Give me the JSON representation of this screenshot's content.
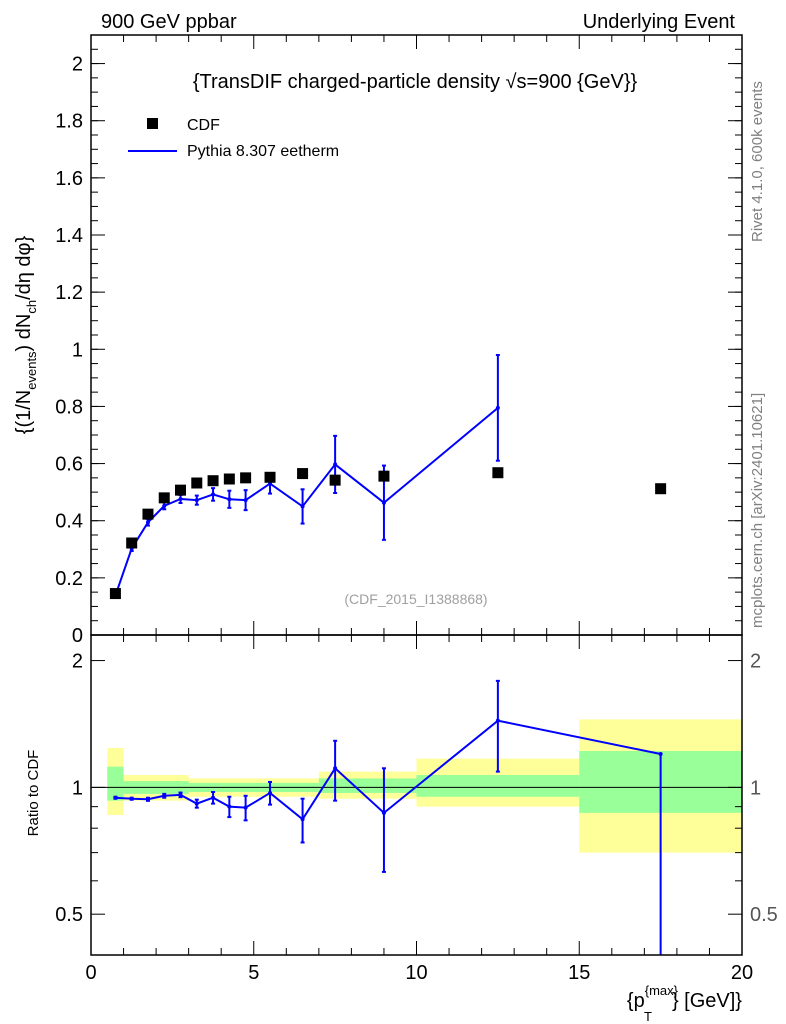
{
  "header": {
    "left": "900 GeV ppbar",
    "right": "Underlying Event"
  },
  "side_labels": {
    "rivet": "Rivet 4.1.0,  600k events",
    "source": "mcplots.cern.ch [arXiv:2401.10621]"
  },
  "chart_data": [
    {
      "type": "scatter",
      "panel": "main",
      "title": "{TransDIF charged-particle density",
      "title_sqrt": "√s=900 {GeV}}",
      "watermark": "(CDF_2015_I1388868)",
      "ylabel": {
        "a": "{(1/N",
        "b": "events",
        "c": ") dN",
        "d": "ch",
        "e": "/dη dφ}"
      },
      "xlim": [
        0,
        20
      ],
      "ylim": [
        0,
        2.1
      ],
      "yticks": [
        0,
        0.2,
        0.4,
        0.6,
        0.8,
        1,
        1.2,
        1.4,
        1.6,
        1.8,
        2
      ],
      "ytick_labels": [
        "0",
        "0.2",
        "0.4",
        "0.6",
        "0.8",
        "1",
        "1.2",
        "1.4",
        "1.6",
        "1.8",
        "2"
      ],
      "legend": [
        {
          "label": "CDF",
          "marker": "square",
          "color": "#000000"
        },
        {
          "label": "Pythia 8.307 eetherm",
          "marker": "line",
          "color": "#0000ff"
        }
      ],
      "series": [
        {
          "name": "CDF",
          "color": "#000000",
          "x": [
            0.75,
            1.25,
            1.75,
            2.25,
            2.75,
            3.25,
            3.75,
            4.25,
            4.75,
            5.5,
            6.5,
            7.5,
            9,
            12.5,
            17.5
          ],
          "y": [
            0.145,
            0.322,
            0.423,
            0.48,
            0.507,
            0.532,
            0.54,
            0.546,
            0.55,
            0.552,
            0.565,
            0.542,
            0.556,
            0.568,
            0.512
          ]
        },
        {
          "name": "Pythia 8.307 eetherm",
          "color": "#0000ff",
          "x": [
            0.75,
            1.25,
            1.75,
            2.25,
            2.75,
            3.25,
            3.75,
            4.25,
            4.75,
            5.5,
            6.5,
            7.5,
            9,
            12.5
          ],
          "y": [
            0.138,
            0.303,
            0.394,
            0.452,
            0.476,
            0.472,
            0.492,
            0.475,
            0.472,
            0.53,
            0.45,
            0.597,
            0.463,
            0.795
          ],
          "yerr": [
            0.004,
            0.009,
            0.011,
            0.012,
            0.014,
            0.016,
            0.022,
            0.03,
            0.035,
            0.035,
            0.06,
            0.1,
            0.13,
            0.185
          ]
        }
      ]
    },
    {
      "type": "line",
      "panel": "ratio",
      "ylabel": "Ratio to CDF",
      "xlabel": {
        "a": "{p",
        "sup": "{max}",
        "sub": "T",
        "b": "} [GeV]}"
      },
      "xlim": [
        0,
        20
      ],
      "ylim": [
        0.4,
        2.3
      ],
      "yscale": "log",
      "yticks": [
        0.5,
        1,
        2
      ],
      "ytick_labels": [
        "0.5",
        "1",
        "2"
      ],
      "xticks": [
        0,
        5,
        10,
        15,
        20
      ],
      "xtick_labels": [
        "0",
        "5",
        "10",
        "15",
        "20"
      ],
      "bands": [
        {
          "x0": 0.5,
          "x1": 1.0,
          "y_lo": 0.86,
          "y_hi": 1.24,
          "g_lo": 0.93,
          "g_hi": 1.12
        },
        {
          "x0": 1.0,
          "x1": 3.0,
          "y_lo": 0.93,
          "y_hi": 1.07,
          "g_lo": 0.965,
          "g_hi": 1.035
        },
        {
          "x0": 3.0,
          "x1": 7.0,
          "y_lo": 0.95,
          "y_hi": 1.05,
          "g_lo": 0.975,
          "g_hi": 1.025
        },
        {
          "x0": 7.0,
          "x1": 10.0,
          "y_lo": 0.94,
          "y_hi": 1.09,
          "g_lo": 0.97,
          "g_hi": 1.05
        },
        {
          "x0": 10.0,
          "x1": 15.0,
          "y_lo": 0.9,
          "y_hi": 1.17,
          "g_lo": 0.95,
          "g_hi": 1.07
        },
        {
          "x0": 15.0,
          "x1": 20.0,
          "y_lo": 0.7,
          "y_hi": 1.45,
          "g_lo": 0.87,
          "g_hi": 1.22
        }
      ],
      "series": [
        {
          "name": "Pythia 8.307 eetherm / CDF",
          "color": "#0000ff",
          "x": [
            0.75,
            1.25,
            1.75,
            2.25,
            2.75,
            3.25,
            3.75,
            4.25,
            4.75,
            5.5,
            6.5,
            7.5,
            9,
            12.5,
            17.5
          ],
          "y": [
            0.945,
            0.94,
            0.937,
            0.955,
            0.96,
            0.915,
            0.945,
            0.9,
            0.895,
            0.97,
            0.84,
            1.11,
            0.87,
            1.44,
            1.2
          ],
          "yerr_lo": [
            0.005,
            0.005,
            0.008,
            0.01,
            0.012,
            0.02,
            0.03,
            0.05,
            0.06,
            0.06,
            0.1,
            0.18,
            0.24,
            0.35,
            0.9
          ],
          "yerr_hi": [
            0.005,
            0.005,
            0.008,
            0.01,
            0.012,
            0.02,
            0.03,
            0.05,
            0.06,
            0.06,
            0.1,
            0.18,
            0.24,
            0.35,
            0.0
          ]
        }
      ]
    }
  ]
}
